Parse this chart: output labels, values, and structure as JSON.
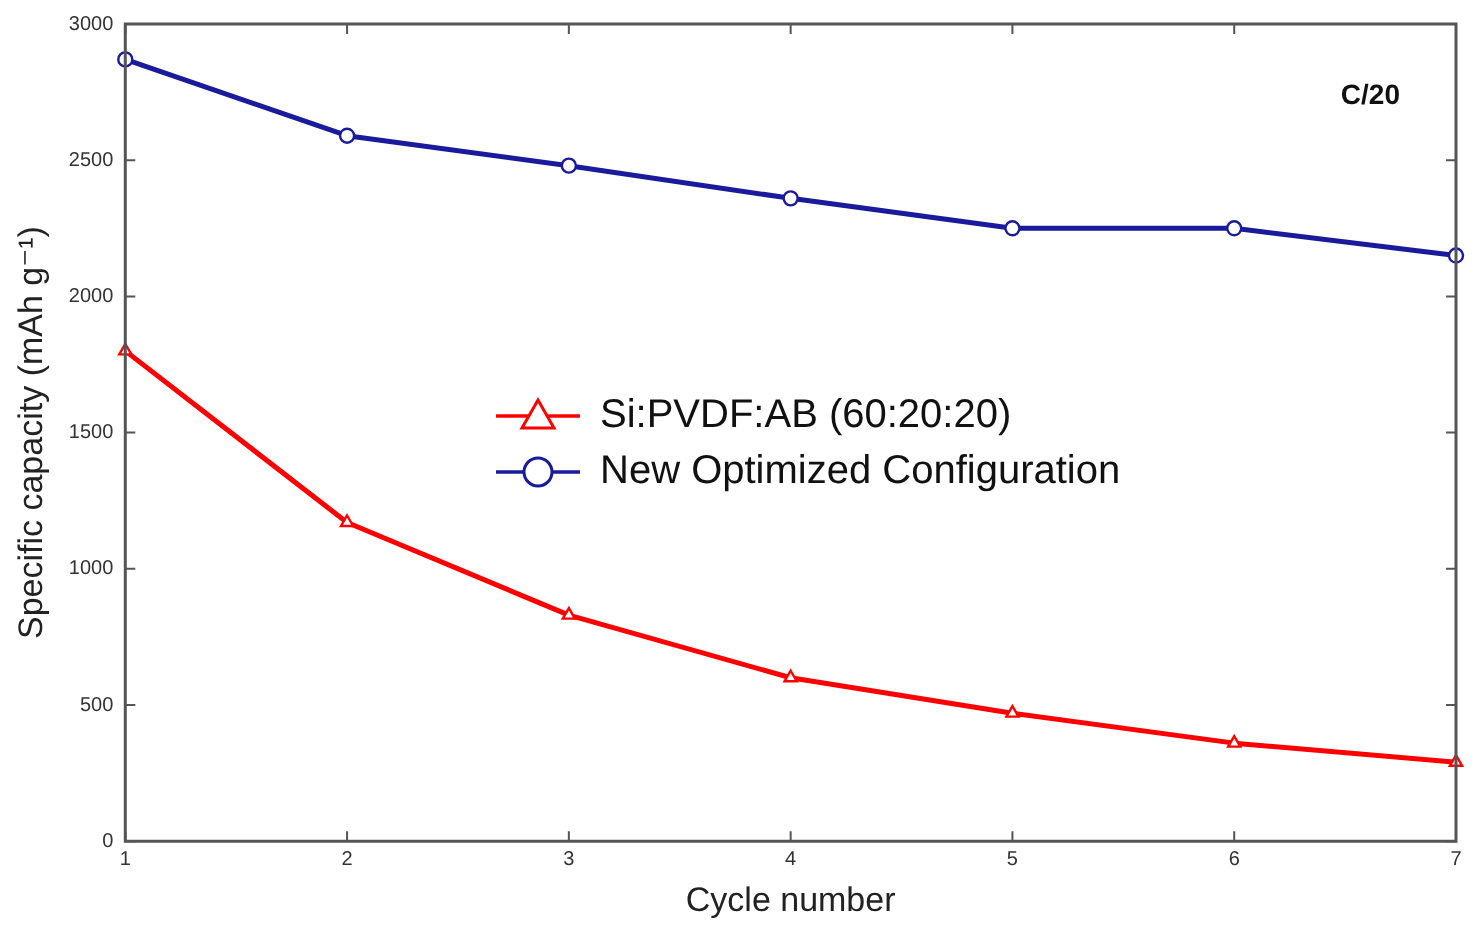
{
  "chart_data": {
    "type": "line",
    "xlabel": "Cycle number",
    "ylabel": "Specific capacity (mAh g⁻¹)",
    "annotations": [
      "C/20"
    ],
    "x": [
      1,
      2,
      3,
      4,
      5,
      6,
      7
    ],
    "series": [
      {
        "name": "Si:PVDF:AB (60:20:20)",
        "color": "#ff0000",
        "marker": "triangle",
        "values": [
          1800,
          1170,
          830,
          600,
          470,
          360,
          290
        ]
      },
      {
        "name": "New Optimized Configuration",
        "color": "#1a1a9c",
        "marker": "circle",
        "values": [
          2870,
          2590,
          2480,
          2360,
          2250,
          2250,
          2150
        ]
      }
    ],
    "xlim": [
      1,
      7
    ],
    "xticks": [
      1,
      2,
      3,
      4,
      5,
      6,
      7
    ],
    "ylim": [
      0,
      3000
    ],
    "yticks": [
      0,
      500,
      1000,
      1500,
      2000,
      2500,
      3000
    ],
    "grid": false,
    "legend": "center",
    "line_style": "solid"
  }
}
